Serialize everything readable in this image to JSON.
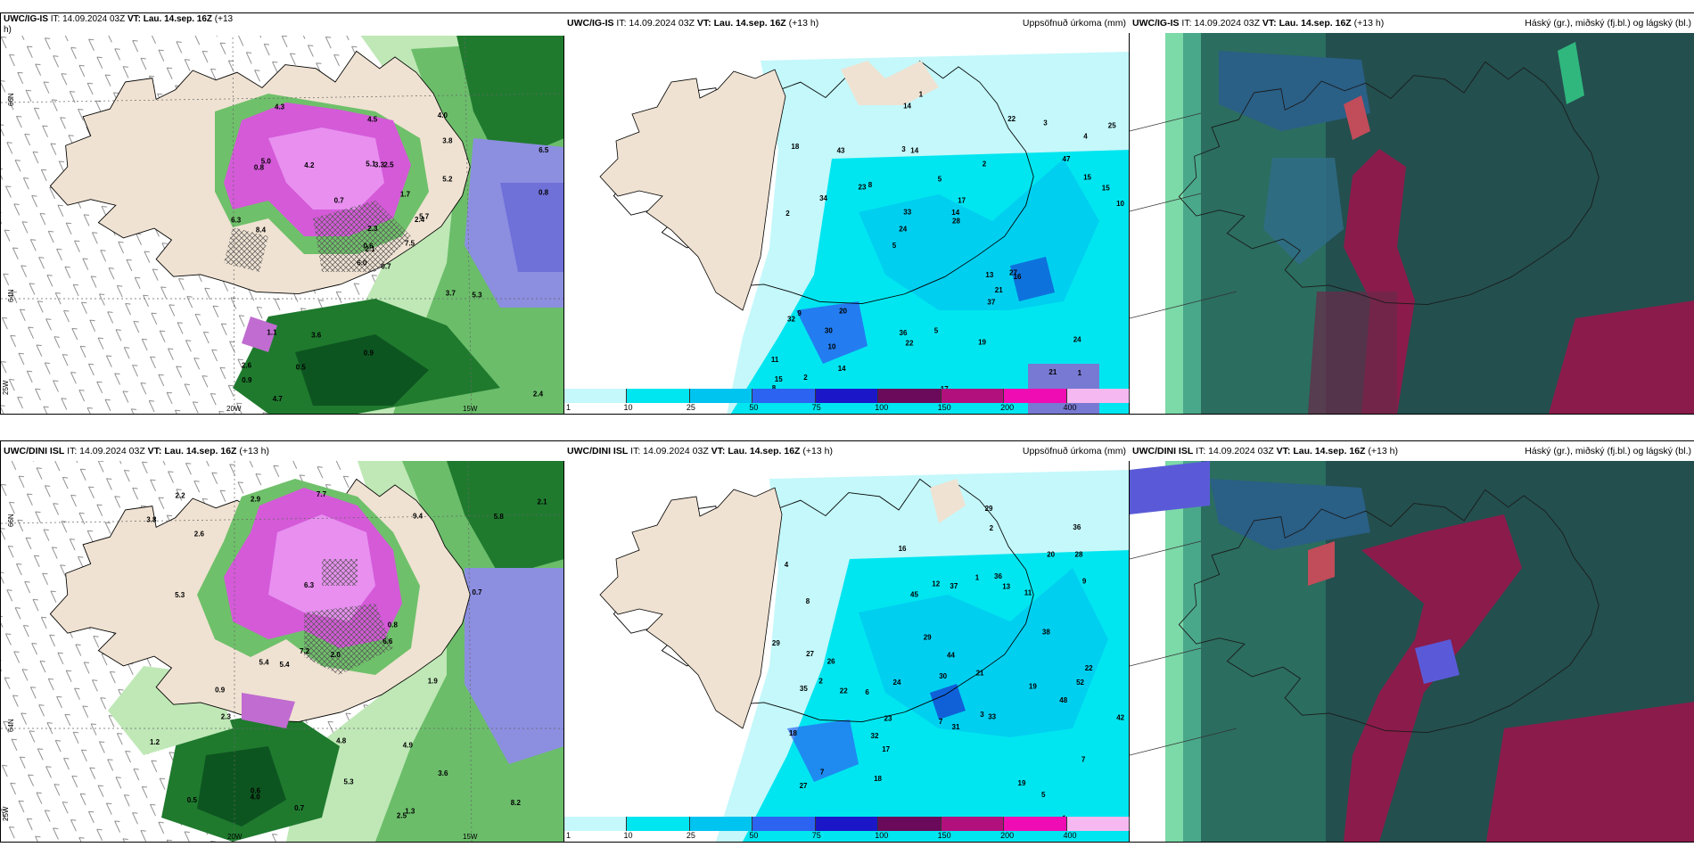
{
  "panels": {
    "top_left": {
      "model": "UWC/IG-IS",
      "it": "IT: 14.09.2024 03Z",
      "vt": "VT: Lau. 14.sep. 16Z",
      "lead": "(+13",
      "lead2": "h)"
    },
    "top_mid": {
      "model": "UWC/IG-IS",
      "it": "IT: 14.09.2024 03Z",
      "vt": "VT: Lau. 14.sep. 16Z",
      "lead": "(+13 h)",
      "right_title": "Uppsöfnuð úrkoma (mm)"
    },
    "top_right": {
      "model": "UWC/IG-IS",
      "it": "IT: 14.09.2024 03Z",
      "vt": "VT: Lau. 14.sep. 16Z",
      "lead": "(+13 h)",
      "right_title": "Háský (gr.), miðský (fj.bl.) og lágský (bl.)"
    },
    "bot_left": {
      "model": "UWC/DINI ISL",
      "it": "IT: 14.09.2024 03Z",
      "vt": "VT: Lau. 14.sep. 16Z",
      "lead": "(+13 h)"
    },
    "bot_mid": {
      "model": "UWC/DINI ISL",
      "it": "IT: 14.09.2024 03Z",
      "vt": "VT: Lau. 14.sep. 16Z",
      "lead": "(+13 h)",
      "right_title": "Uppsöfnuð úrkoma (mm)"
    },
    "bot_right": {
      "model": "UWC/DINI ISL",
      "it": "IT: 14.09.2024 03Z",
      "vt": "VT: Lau. 14.sep. 16Z",
      "lead": "(+13 h)",
      "right_title": "Háský (gr.), miðský (fj.bl.) og lágský (bl.)"
    }
  },
  "axis_labels": {
    "lat66": "66N",
    "lat64": "64N",
    "lon25": "25W",
    "lon20": "20W",
    "lon15": "15W"
  },
  "colorbar": {
    "labels": [
      "1",
      "10",
      "25",
      "50",
      "75",
      "100",
      "150",
      "200",
      "400"
    ],
    "colors": [
      "#c4f8fb",
      "#00e6f0",
      "#00c4f0",
      "#2c63f0",
      "#1b16c8",
      "#6b0a5a",
      "#b2107c",
      "#f00cb3",
      "#f5b8f0"
    ]
  },
  "precip_values_top": [
    "1",
    "2",
    "4",
    "5",
    "2",
    "2",
    "3",
    "5",
    "9",
    "8",
    "11",
    "10",
    "14",
    "17",
    "16",
    "18",
    "14",
    "10",
    "13",
    "15",
    "24",
    "36",
    "33",
    "43",
    "22",
    "20",
    "21",
    "24",
    "27",
    "17",
    "23",
    "34",
    "37",
    "14",
    "15",
    "14",
    "15",
    "22",
    "28",
    "32",
    "47",
    "25",
    "21",
    "19",
    "30",
    "7",
    "8",
    "5",
    "3",
    "1"
  ],
  "precip_values_bot": [
    "1",
    "2",
    "3",
    "4",
    "7",
    "8",
    "7",
    "6",
    "11",
    "12",
    "13",
    "5",
    "17",
    "16",
    "21",
    "18",
    "19",
    "44",
    "29",
    "27",
    "36",
    "37",
    "38",
    "42",
    "22",
    "27",
    "22",
    "30",
    "29",
    "28",
    "33",
    "35",
    "32",
    "36",
    "45",
    "48",
    "52",
    "19",
    "20",
    "17",
    "23",
    "31",
    "18",
    "29",
    "24",
    "26",
    "9",
    "2",
    "1",
    "7"
  ],
  "wind_values_top": [
    "0.7",
    "0.8",
    "2.1",
    "2.6",
    "2.4",
    "3.6",
    "4.0",
    "2.5",
    "3.8",
    "7.5",
    "4.3",
    "2.4",
    "8.4",
    "6.5",
    "6.0",
    "5.2",
    "4.7",
    "5.1",
    "1.7",
    "1.1",
    "0.7",
    "0.9",
    "0.5",
    "3.3",
    "5.7",
    "5.3",
    "5.0",
    "4.5",
    "6.3",
    "3.7",
    "0.8",
    "0.6",
    "0.9",
    "2.3",
    "4.2"
  ],
  "wind_values_bot": [
    "0.7",
    "2.5",
    "0.6",
    "3.6",
    "2.9",
    "2.6",
    "5.4",
    "8.2",
    "7.7",
    "6.3",
    "5.8",
    "5.3",
    "7.2",
    "4.8",
    "9.4",
    "6.6",
    "5.3",
    "4.0",
    "5.4",
    "3.8",
    "4.9",
    "2.1",
    "0.8",
    "0.5",
    "0.7",
    "0.9",
    "1.2",
    "2.3",
    "2.2",
    "1.9",
    "2.0",
    "1.3"
  ]
}
